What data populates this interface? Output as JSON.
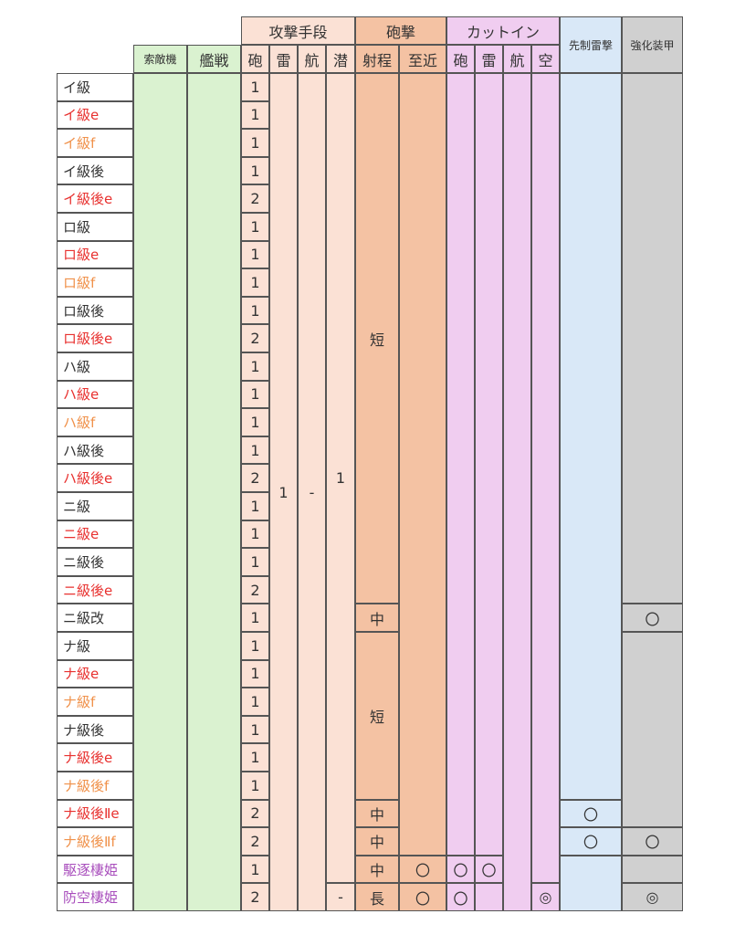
{
  "colors": {
    "search_green": "#daf2d0",
    "attack_light": "#fbe1d5",
    "shelling_dark": "#f4c2a3",
    "cutin_pink": "#f0cdf0",
    "opening_blue": "#d9e8f7",
    "armor_gray": "#d0d0d0",
    "name_black": "#333333",
    "name_red": "#e8312f",
    "name_orange": "#f0914a",
    "name_purple": "#a84dbc"
  },
  "headers": {
    "attack": "攻撃手段",
    "shelling": "砲撃",
    "cutin": "カットイン",
    "opening": "先制雷撃",
    "armor": "強化装甲",
    "search": "索敵機",
    "fleet": "艦戦",
    "atk_gun": "砲",
    "atk_torp": "雷",
    "atk_air": "航",
    "atk_sub": "潜",
    "range": "射程",
    "close": "至近",
    "ci_gun": "砲",
    "ci_torp": "雷",
    "ci_air": "航",
    "ci_aa": "空"
  },
  "rows": [
    {
      "name": "イ級",
      "color": "black",
      "gun": "1"
    },
    {
      "name": "イ級e",
      "color": "red",
      "gun": "1"
    },
    {
      "name": "イ級f",
      "color": "orange",
      "gun": "1"
    },
    {
      "name": "イ級後",
      "color": "black",
      "gun": "1"
    },
    {
      "name": "イ級後e",
      "color": "red",
      "gun": "2"
    },
    {
      "name": "ロ級",
      "color": "black",
      "gun": "1"
    },
    {
      "name": "ロ級e",
      "color": "red",
      "gun": "1"
    },
    {
      "name": "ロ級f",
      "color": "orange",
      "gun": "1"
    },
    {
      "name": "ロ級後",
      "color": "black",
      "gun": "1"
    },
    {
      "name": "ロ級後e",
      "color": "red",
      "gun": "2"
    },
    {
      "name": "ハ級",
      "color": "black",
      "gun": "1"
    },
    {
      "name": "ハ級e",
      "color": "red",
      "gun": "1"
    },
    {
      "name": "ハ級f",
      "color": "orange",
      "gun": "1"
    },
    {
      "name": "ハ級後",
      "color": "black",
      "gun": "1"
    },
    {
      "name": "ハ級後e",
      "color": "red",
      "gun": "2"
    },
    {
      "name": "ニ級",
      "color": "black",
      "gun": "1"
    },
    {
      "name": "ニ級e",
      "color": "red",
      "gun": "1"
    },
    {
      "name": "ニ級後",
      "color": "black",
      "gun": "1"
    },
    {
      "name": "ニ級後e",
      "color": "red",
      "gun": "2"
    },
    {
      "name": "ニ級改",
      "color": "black",
      "gun": "1"
    },
    {
      "name": "ナ級",
      "color": "black",
      "gun": "1"
    },
    {
      "name": "ナ級e",
      "color": "red",
      "gun": "1"
    },
    {
      "name": "ナ級f",
      "color": "orange",
      "gun": "1"
    },
    {
      "name": "ナ級後",
      "color": "black",
      "gun": "1"
    },
    {
      "name": "ナ級後e",
      "color": "red",
      "gun": "1"
    },
    {
      "name": "ナ級後f",
      "color": "orange",
      "gun": "1"
    },
    {
      "name": "ナ級後Ⅱe",
      "color": "red",
      "gun": "2"
    },
    {
      "name": "ナ級後Ⅱf",
      "color": "orange",
      "gun": "2"
    },
    {
      "name": "駆逐棲姫",
      "color": "purple",
      "gun": "1"
    },
    {
      "name": "防空棲姫",
      "color": "purple",
      "gun": "2"
    }
  ],
  "merged": {
    "torp_group_value": "1",
    "air_group_value": "-",
    "sub_group_value": "1",
    "last_sub_value": "-",
    "range_short_1": "短",
    "range_mid_1": "中",
    "range_short_2": "短",
    "range_mid_2": "中",
    "range_mid_3": "中",
    "range_mid_4": "中",
    "range_long": "長",
    "close_r28": "〇",
    "close_r29": "〇",
    "ci_gun_r28": "〇",
    "ci_torp_r28": "〇",
    "ci_gun_r29": "〇",
    "ci_aa_r29": "◎",
    "opening_r26": "〇",
    "opening_r27": "〇",
    "armor_r19": "〇",
    "armor_r27": "〇",
    "armor_r29": "◎"
  }
}
